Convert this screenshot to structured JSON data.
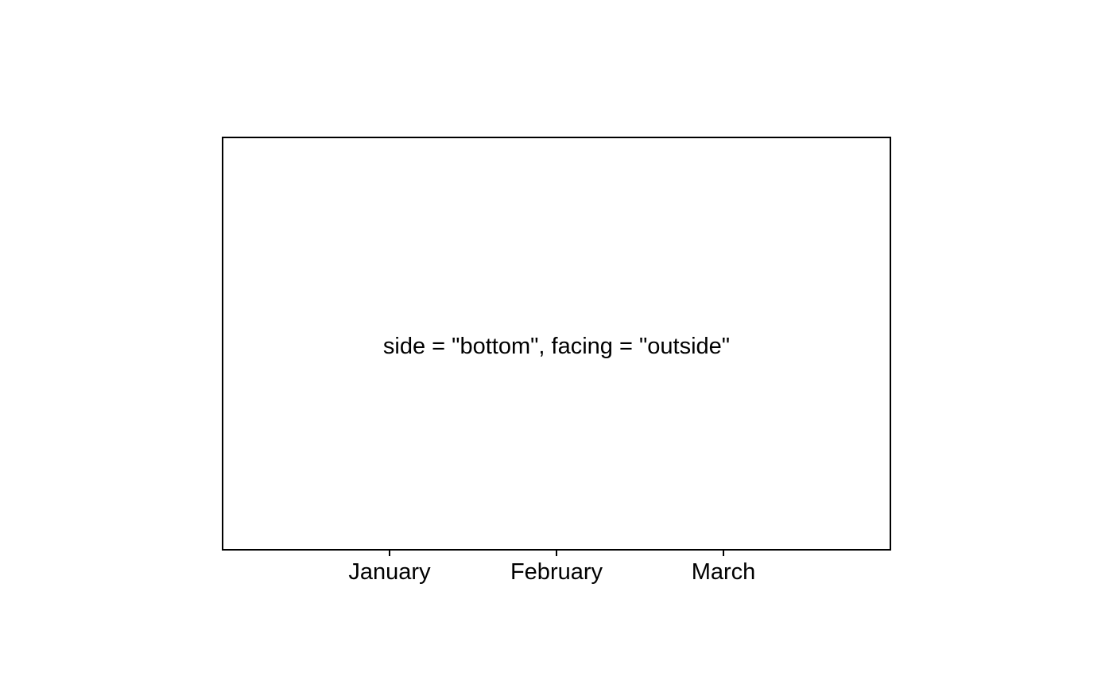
{
  "chart_data": {
    "type": "bar",
    "title": "",
    "xlabel": "",
    "ylabel": "",
    "categories": [
      "January",
      "February",
      "March"
    ],
    "x_positions": [
      1,
      2,
      3
    ],
    "xlim": [
      0,
      4
    ],
    "grid": false,
    "annotation": "side = \"bottom\", facing = \"outside\"",
    "series": []
  },
  "colors": {
    "background": "#ffffff",
    "axis": "#000000",
    "text": "#000000"
  }
}
